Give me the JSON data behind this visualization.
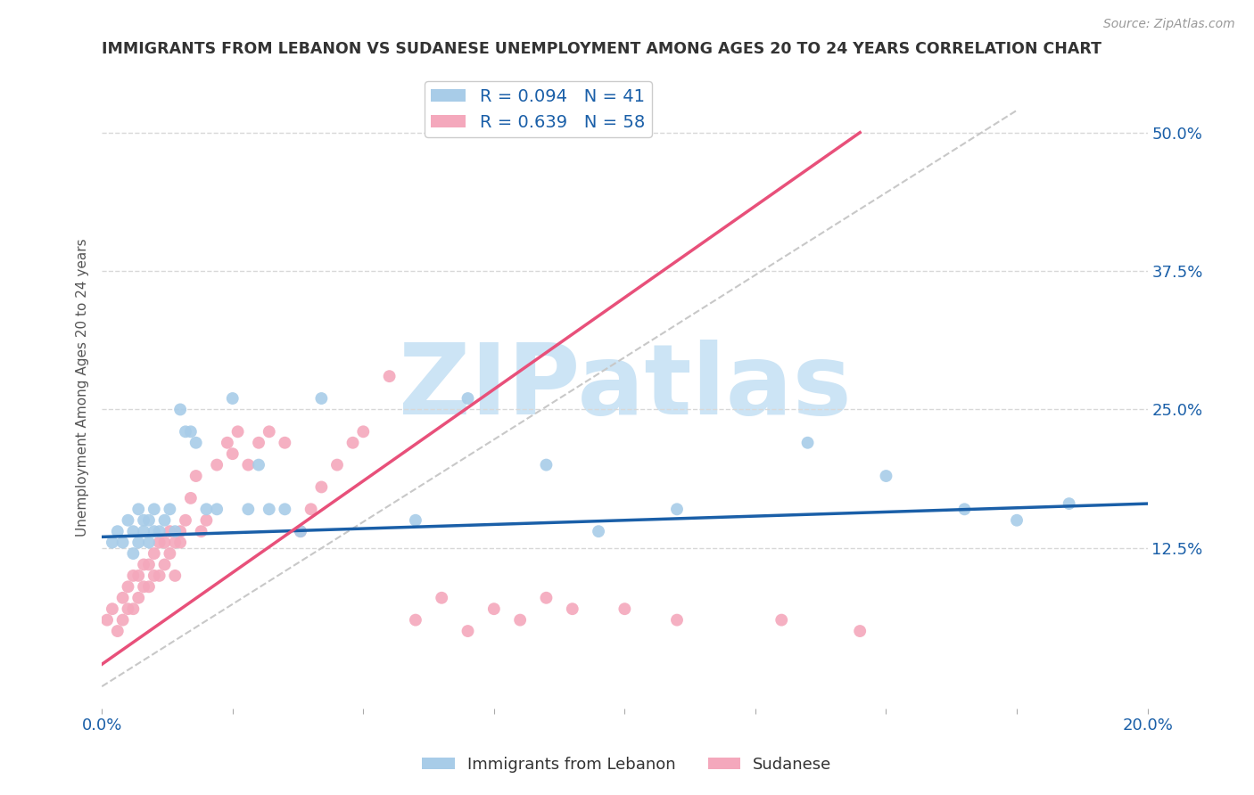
{
  "title": "IMMIGRANTS FROM LEBANON VS SUDANESE UNEMPLOYMENT AMONG AGES 20 TO 24 YEARS CORRELATION CHART",
  "source": "Source: ZipAtlas.com",
  "ylabel": "Unemployment Among Ages 20 to 24 years",
  "xlim": [
    0.0,
    0.2
  ],
  "ylim": [
    -0.02,
    0.56
  ],
  "ytick_vals_right": [
    0.125,
    0.25,
    0.375,
    0.5
  ],
  "ytick_labels_right": [
    "12.5%",
    "25.0%",
    "37.5%",
    "50.0%"
  ],
  "xticks": [
    0.0,
    0.025,
    0.05,
    0.075,
    0.1,
    0.125,
    0.15,
    0.175,
    0.2
  ],
  "legend_r1": "R = 0.094",
  "legend_n1": "N = 41",
  "legend_r2": "R = 0.639",
  "legend_n2": "N = 58",
  "color_blue": "#a8cce8",
  "color_pink": "#f4a8bc",
  "color_blue_line": "#1a5fa8",
  "color_pink_line": "#e8507a",
  "color_ref_line": "#c8c8c8",
  "color_text_blue": "#1a5fa8",
  "color_watermark": "#cce4f5",
  "watermark_text": "ZIPatlas",
  "background_color": "#ffffff",
  "grid_color": "#d8d8d8",
  "lebanon_x": [
    0.002,
    0.003,
    0.004,
    0.005,
    0.006,
    0.006,
    0.007,
    0.007,
    0.008,
    0.008,
    0.009,
    0.009,
    0.01,
    0.01,
    0.011,
    0.012,
    0.013,
    0.014,
    0.015,
    0.016,
    0.017,
    0.018,
    0.02,
    0.022,
    0.025,
    0.028,
    0.03,
    0.032,
    0.035,
    0.038,
    0.042,
    0.06,
    0.07,
    0.085,
    0.095,
    0.11,
    0.135,
    0.15,
    0.165,
    0.175,
    0.185
  ],
  "lebanon_y": [
    0.13,
    0.14,
    0.13,
    0.15,
    0.12,
    0.14,
    0.13,
    0.16,
    0.14,
    0.15,
    0.13,
    0.15,
    0.14,
    0.16,
    0.14,
    0.15,
    0.16,
    0.14,
    0.25,
    0.23,
    0.23,
    0.22,
    0.16,
    0.16,
    0.26,
    0.16,
    0.2,
    0.16,
    0.16,
    0.14,
    0.26,
    0.15,
    0.26,
    0.2,
    0.14,
    0.16,
    0.22,
    0.19,
    0.16,
    0.15,
    0.165
  ],
  "sudanese_x": [
    0.001,
    0.002,
    0.003,
    0.004,
    0.004,
    0.005,
    0.005,
    0.006,
    0.006,
    0.007,
    0.007,
    0.008,
    0.008,
    0.009,
    0.009,
    0.01,
    0.01,
    0.011,
    0.011,
    0.012,
    0.012,
    0.013,
    0.013,
    0.014,
    0.014,
    0.015,
    0.015,
    0.016,
    0.017,
    0.018,
    0.019,
    0.02,
    0.022,
    0.024,
    0.025,
    0.026,
    0.028,
    0.03,
    0.032,
    0.035,
    0.038,
    0.04,
    0.042,
    0.045,
    0.048,
    0.05,
    0.055,
    0.06,
    0.065,
    0.07,
    0.075,
    0.08,
    0.085,
    0.09,
    0.1,
    0.11,
    0.13,
    0.145
  ],
  "sudanese_y": [
    0.06,
    0.07,
    0.05,
    0.06,
    0.08,
    0.07,
    0.09,
    0.07,
    0.1,
    0.08,
    0.1,
    0.09,
    0.11,
    0.09,
    0.11,
    0.1,
    0.12,
    0.1,
    0.13,
    0.11,
    0.13,
    0.12,
    0.14,
    0.13,
    0.1,
    0.13,
    0.14,
    0.15,
    0.17,
    0.19,
    0.14,
    0.15,
    0.2,
    0.22,
    0.21,
    0.23,
    0.2,
    0.22,
    0.23,
    0.22,
    0.14,
    0.16,
    0.18,
    0.2,
    0.22,
    0.23,
    0.28,
    0.06,
    0.08,
    0.05,
    0.07,
    0.06,
    0.08,
    0.07,
    0.07,
    0.06,
    0.06,
    0.05
  ]
}
